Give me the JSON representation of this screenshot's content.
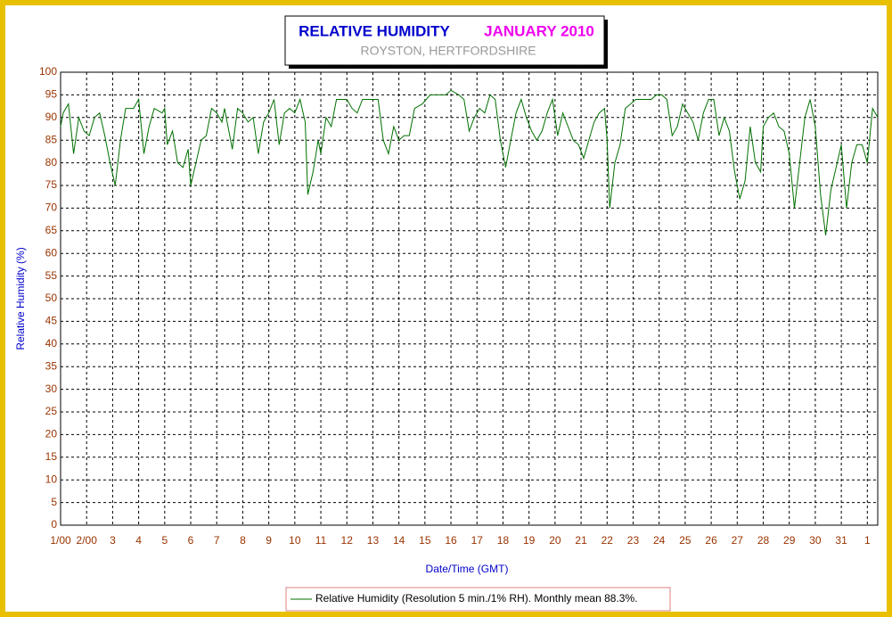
{
  "chart_data": {
    "type": "line",
    "title": "RELATIVE HUMIDITY",
    "title_date": "JANUARY 2010",
    "subtitle": "ROYSTON, HERTFORDSHIRE",
    "x_label": "Date/Time (GMT)",
    "y_label": "Relative Humidity (%)",
    "xlim": [
      0,
      31.4
    ],
    "ylim": [
      0,
      100
    ],
    "xticks": [
      {
        "value": 0,
        "label": "1/00"
      },
      {
        "value": 1,
        "label": "2/00"
      },
      {
        "value": 2,
        "label": "3"
      },
      {
        "value": 3,
        "label": "4"
      },
      {
        "value": 4,
        "label": "5"
      },
      {
        "value": 5,
        "label": "6"
      },
      {
        "value": 6,
        "label": "7"
      },
      {
        "value": 7,
        "label": "8"
      },
      {
        "value": 8,
        "label": "9"
      },
      {
        "value": 9,
        "label": "10"
      },
      {
        "value": 10,
        "label": "11"
      },
      {
        "value": 11,
        "label": "12"
      },
      {
        "value": 12,
        "label": "13"
      },
      {
        "value": 13,
        "label": "14"
      },
      {
        "value": 14,
        "label": "15"
      },
      {
        "value": 15,
        "label": "16"
      },
      {
        "value": 16,
        "label": "17"
      },
      {
        "value": 17,
        "label": "18"
      },
      {
        "value": 18,
        "label": "19"
      },
      {
        "value": 19,
        "label": "20"
      },
      {
        "value": 20,
        "label": "21"
      },
      {
        "value": 21,
        "label": "22"
      },
      {
        "value": 22,
        "label": "23"
      },
      {
        "value": 23,
        "label": "24"
      },
      {
        "value": 24,
        "label": "25"
      },
      {
        "value": 25,
        "label": "26"
      },
      {
        "value": 26,
        "label": "27"
      },
      {
        "value": 27,
        "label": "28"
      },
      {
        "value": 28,
        "label": "29"
      },
      {
        "value": 29,
        "label": "30"
      },
      {
        "value": 30,
        "label": "31"
      },
      {
        "value": 31,
        "label": "1"
      }
    ],
    "yticks": [
      0,
      5,
      10,
      15,
      20,
      25,
      30,
      35,
      40,
      45,
      50,
      55,
      60,
      65,
      70,
      75,
      80,
      85,
      90,
      95,
      100
    ],
    "grid": true,
    "legend": "bottom",
    "series": [
      {
        "name": "Relative Humidity (Resolution 5 min./1% RH). Monthly mean 88.3%.",
        "color": "#007000",
        "x": [
          0,
          0.1,
          0.3,
          0.5,
          0.7,
          0.9,
          1.1,
          1.3,
          1.5,
          1.7,
          1.9,
          2.1,
          2.3,
          2.5,
          2.8,
          3.0,
          3.2,
          3.4,
          3.6,
          3.9,
          4.0,
          4.1,
          4.3,
          4.5,
          4.7,
          4.9,
          5.0,
          5.2,
          5.4,
          5.6,
          5.8,
          6.0,
          6.2,
          6.3,
          6.5,
          6.6,
          6.8,
          7.0,
          7.2,
          7.4,
          7.6,
          7.8,
          8.0,
          8.2,
          8.4,
          8.6,
          8.8,
          9.0,
          9.2,
          9.4,
          9.5,
          9.7,
          9.9,
          10.0,
          10.2,
          10.4,
          10.6,
          10.8,
          11.0,
          11.2,
          11.4,
          11.6,
          11.8,
          12.0,
          12.2,
          12.4,
          12.6,
          12.8,
          13.0,
          13.2,
          13.4,
          13.6,
          13.9,
          14.2,
          14.5,
          14.8,
          15.0,
          15.3,
          15.5,
          15.7,
          15.9,
          16.1,
          16.3,
          16.5,
          16.7,
          16.9,
          17.1,
          17.3,
          17.5,
          17.7,
          17.9,
          18.1,
          18.3,
          18.5,
          18.7,
          18.9,
          19.1,
          19.3,
          19.5,
          19.7,
          19.9,
          20.1,
          20.3,
          20.5,
          20.7,
          20.9,
          21.0,
          21.1,
          21.3,
          21.5,
          21.7,
          21.9,
          22.1,
          22.4,
          22.7,
          22.9,
          23.1,
          23.3,
          23.5,
          23.7,
          23.9,
          24.1,
          24.3,
          24.5,
          24.7,
          24.9,
          25.1,
          25.3,
          25.5,
          25.7,
          25.9,
          26.1,
          26.3,
          26.5,
          26.7,
          26.9,
          27.0,
          27.2,
          27.4,
          27.6,
          27.8,
          28.0,
          28.2,
          28.4,
          28.6,
          28.8,
          29.0,
          29.2,
          29.4,
          29.6,
          29.8,
          30.0,
          30.2,
          30.4,
          30.6,
          30.8,
          31.0,
          31.2,
          31.4
        ],
        "values": [
          88,
          91,
          93,
          82,
          90,
          87,
          86,
          90,
          91,
          86,
          80,
          75,
          85,
          92,
          92,
          94,
          82,
          88,
          92,
          91,
          92,
          84,
          87,
          80,
          79,
          83,
          75,
          80,
          85,
          86,
          92,
          91,
          89,
          92,
          86,
          83,
          92,
          91,
          89,
          90,
          82,
          89,
          91,
          94,
          84,
          91,
          92,
          91,
          94,
          89,
          73,
          78,
          85,
          82,
          90,
          88,
          94,
          94,
          94,
          92,
          91,
          94,
          94,
          94,
          94,
          85,
          82,
          88,
          85,
          86,
          86,
          92,
          93,
          95,
          95,
          95,
          96,
          95,
          94,
          87,
          90,
          92,
          91,
          95,
          94,
          85,
          79,
          85,
          91,
          94,
          90,
          87,
          85,
          87,
          91,
          94,
          86,
          91,
          88,
          85,
          84,
          81,
          85,
          89,
          91,
          92,
          85,
          70,
          80,
          84,
          92,
          93,
          94,
          94,
          94,
          95,
          95,
          94,
          86,
          88,
          93,
          91,
          89,
          85,
          91,
          94,
          94,
          86,
          90,
          87,
          78,
          72,
          76,
          88,
          80,
          78,
          88,
          90,
          91,
          88,
          87,
          82,
          70,
          80,
          90,
          94,
          88,
          73,
          64,
          74,
          79,
          84,
          70,
          80,
          84,
          84,
          80,
          92,
          90
        ]
      }
    ]
  }
}
